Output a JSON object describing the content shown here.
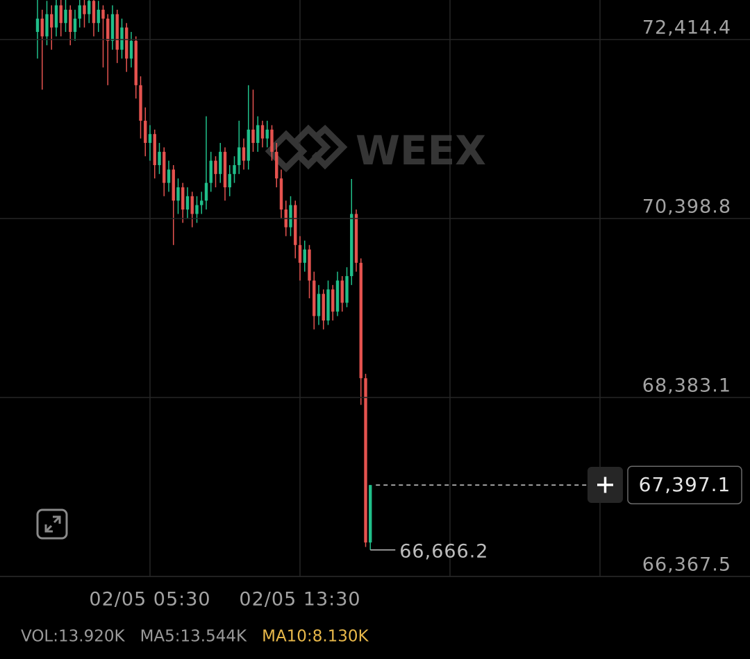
{
  "chart_data": {
    "type": "candlestick",
    "watermark": "WEEX",
    "up_color": "#20bf8a",
    "down_color": "#e5534f",
    "ylim": [
      66367.5,
      72859.7
    ],
    "yticks": [
      {
        "value": 72414.4,
        "label": "72,414.4"
      },
      {
        "value": 70398.8,
        "label": "70,398.8"
      },
      {
        "value": 68383.1,
        "label": "68,383.1"
      },
      {
        "value": 66367.5,
        "label": "66,367.5"
      }
    ],
    "xticks": [
      {
        "value": 24,
        "label": "02/05 05:30"
      },
      {
        "value": 56,
        "label": "02/05 13:30"
      }
    ],
    "grid": true,
    "open": [
      72500,
      72650,
      72450,
      72700,
      72550,
      72800,
      72600,
      72750,
      72500,
      72650,
      72800,
      72700,
      72850,
      72600,
      72750,
      72650,
      72400,
      72700,
      72300,
      72550,
      72200,
      72400,
      71900,
      71500,
      71250,
      71350,
      71000,
      71150,
      70800,
      70950,
      70600,
      70750,
      70500,
      70650,
      70450,
      70550,
      70600,
      70800,
      71050,
      70900,
      71150,
      70750,
      70900,
      71000,
      71200,
      71050,
      71400,
      71250,
      71450,
      71300,
      71400,
      71150,
      70850,
      70500,
      70300,
      70550,
      70100,
      69900,
      70050,
      69700,
      69300,
      69550,
      69250,
      69600,
      69350,
      69700,
      69450,
      69750,
      70450,
      69900,
      68600,
      66750
    ],
    "high": [
      72900,
      72750,
      72850,
      72800,
      72900,
      72880,
      72900,
      72800,
      72750,
      72900,
      72880,
      72950,
      72900,
      72850,
      72800,
      72700,
      72800,
      72750,
      72650,
      72600,
      72500,
      72450,
      72000,
      71650,
      71450,
      71400,
      71250,
      71200,
      71050,
      71000,
      70850,
      70800,
      70750,
      70700,
      70650,
      70700,
      71550,
      71150,
      71100,
      71250,
      71200,
      71000,
      71100,
      71500,
      71300,
      71900,
      71850,
      71550,
      71500,
      71500,
      71450,
      71250,
      70950,
      70600,
      70650,
      70600,
      70200,
      70150,
      70100,
      69800,
      69650,
      69600,
      69700,
      69650,
      69800,
      69750,
      69850,
      70844,
      70500,
      69950,
      68650,
      67397.1
    ],
    "low": [
      72200,
      71850,
      72350,
      72300,
      72450,
      72450,
      72500,
      72350,
      72400,
      72550,
      72550,
      72600,
      72450,
      72500,
      72100,
      71900,
      72300,
      72150,
      72200,
      72050,
      72100,
      71750,
      71300,
      71100,
      71050,
      70850,
      70900,
      70650,
      70700,
      70100,
      70450,
      70350,
      70400,
      70300,
      70350,
      70450,
      70500,
      70700,
      70750,
      70800,
      70600,
      70650,
      70800,
      70900,
      70950,
      70950,
      71150,
      71150,
      71200,
      71200,
      71050,
      70750,
      70400,
      70200,
      70200,
      69950,
      69700,
      69800,
      69500,
      69150,
      69200,
      69150,
      69200,
      69250,
      69300,
      69350,
      69400,
      69650,
      69800,
      68300,
      66700,
      66666.2
    ],
    "close": [
      72650,
      72450,
      72700,
      72550,
      72800,
      72600,
      72750,
      72500,
      72650,
      72800,
      72700,
      72850,
      72600,
      72750,
      72650,
      72400,
      72700,
      72300,
      72550,
      72200,
      72400,
      71900,
      71500,
      71250,
      71350,
      71000,
      71150,
      70800,
      70950,
      70600,
      70750,
      70500,
      70650,
      70450,
      70550,
      70600,
      70800,
      71050,
      70900,
      71150,
      70750,
      70900,
      71000,
      71200,
      71050,
      71400,
      71250,
      71450,
      71300,
      71400,
      71150,
      70850,
      70500,
      70300,
      70550,
      70100,
      69900,
      70050,
      69700,
      69300,
      69550,
      69250,
      69600,
      69350,
      69700,
      69450,
      69750,
      70450,
      69900,
      68600,
      66750,
      67397.1
    ],
    "last_price": {
      "value": 67397.1,
      "label": "67,397.1"
    },
    "low_marker": {
      "value": 66666.2,
      "label": "66,666.2"
    },
    "indicators": [
      {
        "text": "VOL:13.920K",
        "color": "#9a9a9a"
      },
      {
        "text": "MA5:13.544K",
        "color": "#9a9a9a"
      },
      {
        "text": "MA10:8.130K",
        "color": "#e8b84a"
      }
    ]
  }
}
